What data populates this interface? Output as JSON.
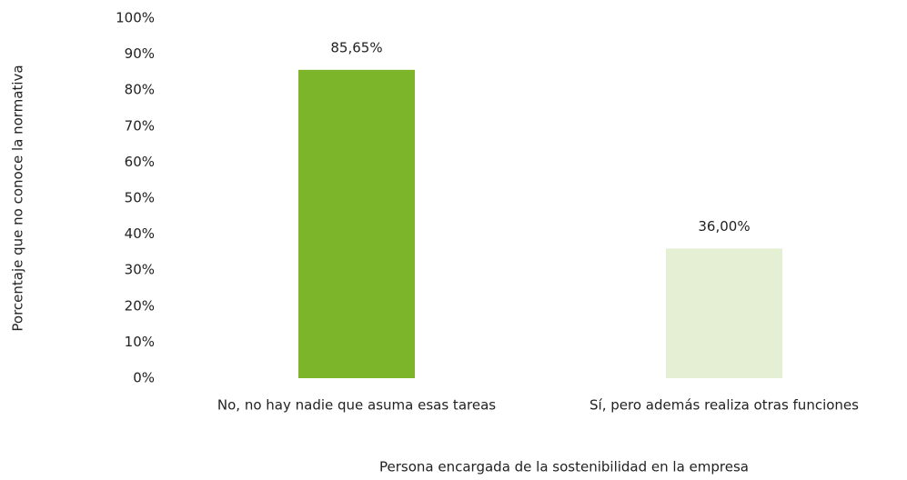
{
  "chart_data": {
    "type": "bar",
    "xlabel": "Persona encargada de la sostenibilidad en la empresa",
    "ylabel": "Porcentaje que no conoce la normativa",
    "categories": [
      "No, no hay nadie que asuma esas tareas",
      "Sí, pero además realiza otras funciones"
    ],
    "values": [
      85.65,
      36.0
    ],
    "value_labels": [
      "85,65%",
      "36,00%"
    ],
    "colors": [
      "#7db52a",
      "#e5efd3"
    ],
    "ylim": [
      0,
      100
    ],
    "yticks": [
      {
        "value": 0,
        "label": "0%"
      },
      {
        "value": 10,
        "label": "10%"
      },
      {
        "value": 20,
        "label": "20%"
      },
      {
        "value": 30,
        "label": "30%"
      },
      {
        "value": 40,
        "label": "40%"
      },
      {
        "value": 50,
        "label": "50%"
      },
      {
        "value": 60,
        "label": "60%"
      },
      {
        "value": 70,
        "label": "70%"
      },
      {
        "value": 80,
        "label": "80%"
      },
      {
        "value": 90,
        "label": "90%"
      },
      {
        "value": 100,
        "label": "100%"
      }
    ],
    "grid": false
  }
}
